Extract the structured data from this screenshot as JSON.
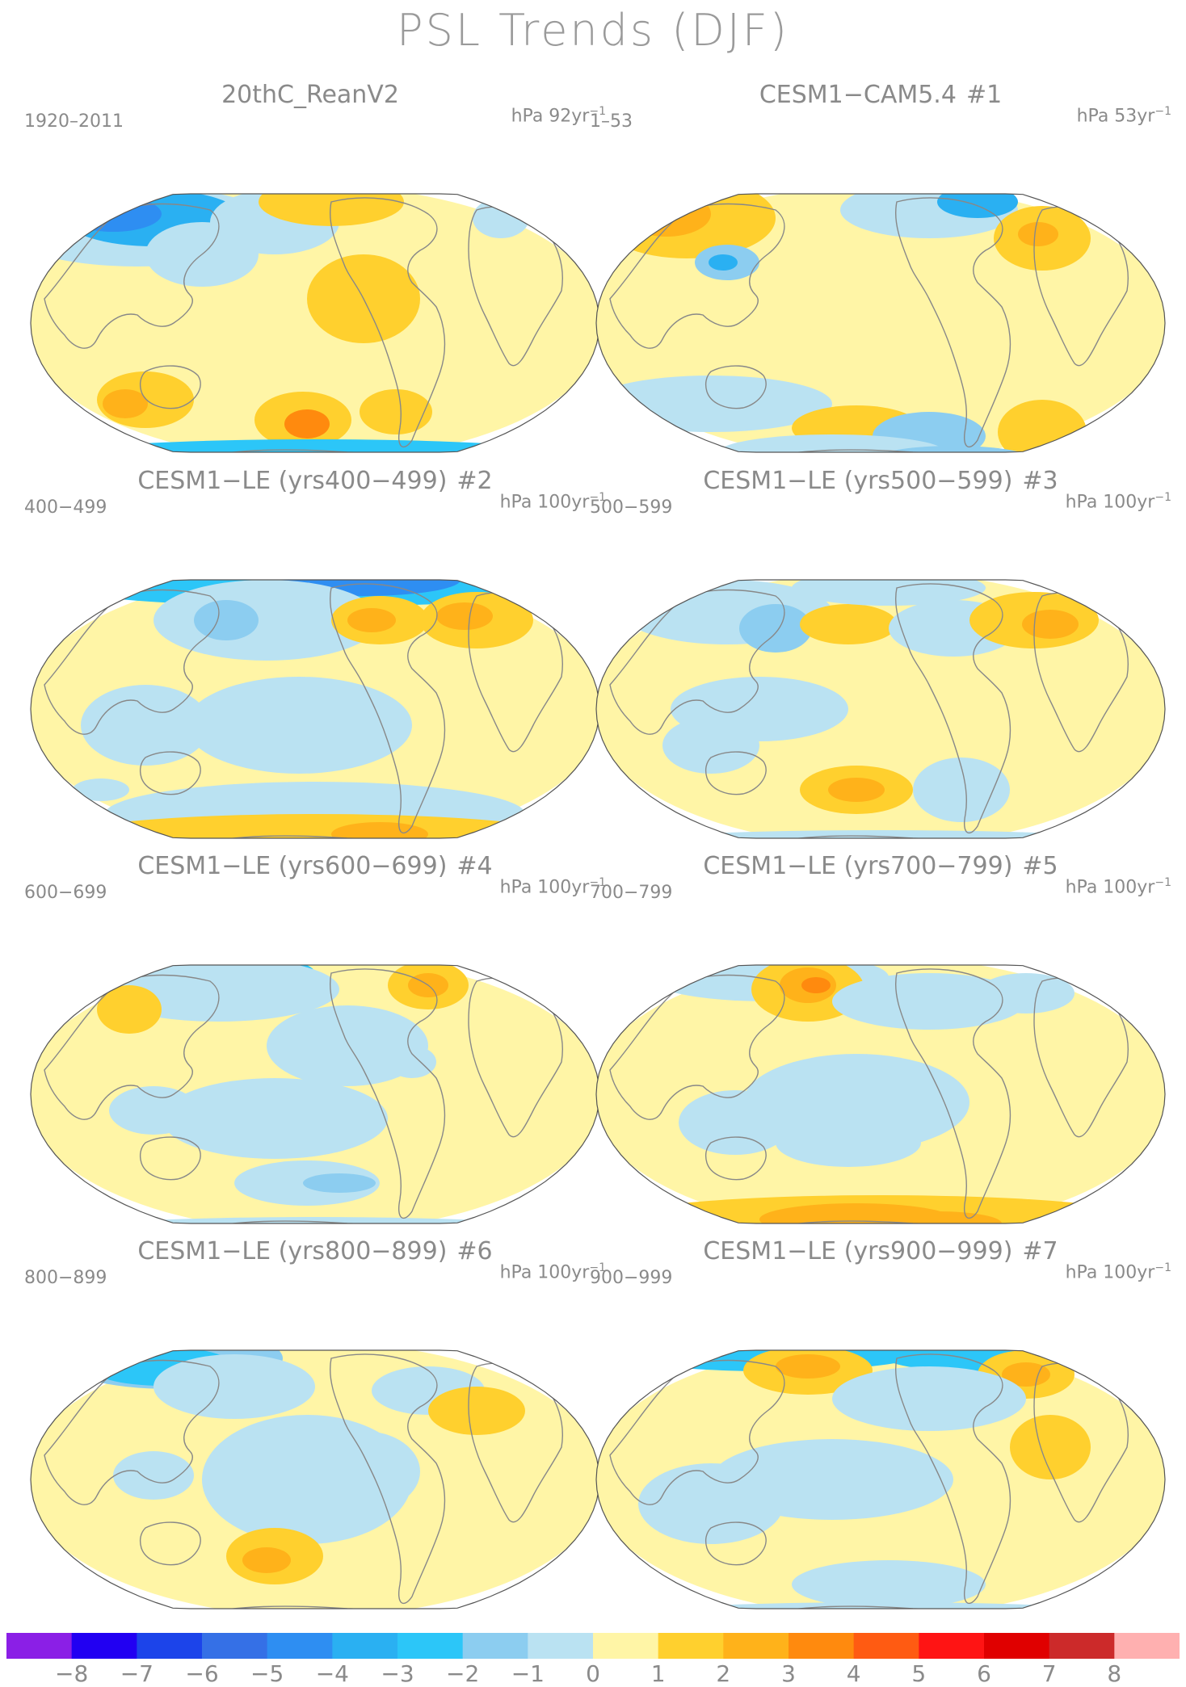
{
  "title": "PSL Trends (DJF)",
  "colors": {
    "land": "#888888",
    "ocean": "#ffffff",
    "colorbar": [
      "#8b1fe6",
      "#2200f2",
      "#1c44ea",
      "#3570e6",
      "#2e8ef2",
      "#2ab0f2",
      "#2cc6f8",
      "#8ccdf0",
      "#bae2f2",
      "#fff5a6",
      "#ffd02e",
      "#ffb21a",
      "#ff8a0e",
      "#ff5b12",
      "#ff1414",
      "#e00000",
      "#cc2a2a",
      "#ffb0b0"
    ]
  },
  "colorbar": {
    "labels": [
      "−8",
      "−7",
      "−6",
      "−5",
      "−4",
      "−3",
      "−2",
      "−1",
      "0",
      "1",
      "2",
      "3",
      "4",
      "5",
      "6",
      "7",
      "8"
    ]
  },
  "panels": [
    {
      "title": "20thC_ReanV2",
      "num": "",
      "period": "1920–2011",
      "units": "hPa 92yr",
      "units_exp": "−1"
    },
    {
      "title": "CESM1−CAM5.4",
      "num": "#1",
      "period": "1–53",
      "units": "hPa 53yr",
      "units_exp": "−1"
    },
    {
      "title": "CESM1−LE (yrs400−499)",
      "num": "#2",
      "period": "400−499",
      "units": "hPa 100yr",
      "units_exp": "−1"
    },
    {
      "title": "CESM1−LE (yrs500−599)",
      "num": "#3",
      "period": "500−599",
      "units": "hPa 100yr",
      "units_exp": "−1"
    },
    {
      "title": "CESM1−LE (yrs600−699)",
      "num": "#4",
      "period": "600−699",
      "units": "hPa 100yr",
      "units_exp": "−1"
    },
    {
      "title": "CESM1−LE (yrs700−799)",
      "num": "#5",
      "period": "700−799",
      "units": "hPa 100yr",
      "units_exp": "−1"
    },
    {
      "title": "CESM1−LE (yrs800−899)",
      "num": "#6",
      "period": "800−899",
      "units": "hPa 100yr",
      "units_exp": "−1"
    },
    {
      "title": "CESM1−LE (yrs900−999)",
      "num": "#7",
      "period": "900−999",
      "units": "hPa 100yr",
      "units_exp": "−1"
    }
  ]
}
